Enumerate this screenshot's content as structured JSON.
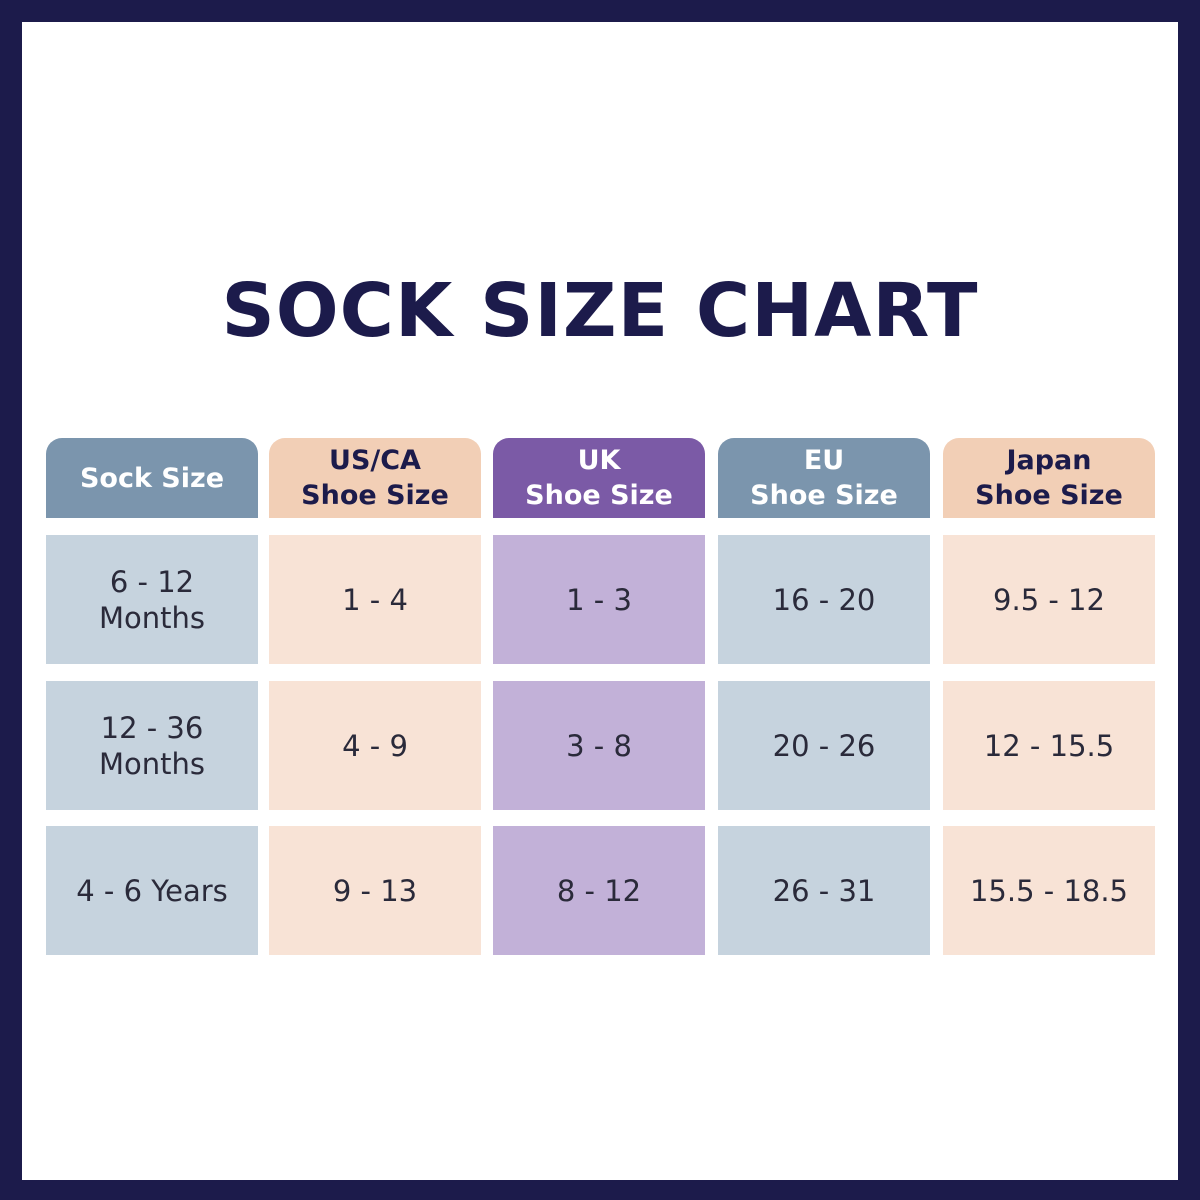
{
  "chart_data": {
    "type": "table",
    "title": "SOCK SIZE CHART",
    "columns": [
      {
        "label": "Sock Size",
        "header_bg": "#7b95ad",
        "header_fg": "#ffffff",
        "cell_bg": "#c6d3de"
      },
      {
        "label": "US/CA\nShoe Size",
        "header_bg": "#f2cfb6",
        "header_fg": "#1c1b4b",
        "cell_bg": "#f8e3d6"
      },
      {
        "label": "UK\nShoe Size",
        "header_bg": "#7b5aa6",
        "header_fg": "#ffffff",
        "cell_bg": "#c2b1d8"
      },
      {
        "label": "EU\nShoe Size",
        "header_bg": "#7b95ad",
        "header_fg": "#ffffff",
        "cell_bg": "#c6d3de"
      },
      {
        "label": "Japan\nShoe Size",
        "header_bg": "#f2cfb6",
        "header_fg": "#1c1b4b",
        "cell_bg": "#f8e3d6"
      }
    ],
    "rows": [
      [
        "6 - 12\nMonths",
        "1 - 4",
        "1 - 3",
        "16 - 20",
        "9.5 - 12"
      ],
      [
        "12 - 36\nMonths",
        "4 - 9",
        "3 - 8",
        "20 - 26",
        "12 - 15.5"
      ],
      [
        "4 - 6 Years",
        "9 - 13",
        "8 - 12",
        "26 - 31",
        "15.5 - 18.5"
      ]
    ]
  },
  "colors": {
    "border": "#1c1b4b",
    "background": "#ffffff",
    "title": "#1c1b4b"
  }
}
